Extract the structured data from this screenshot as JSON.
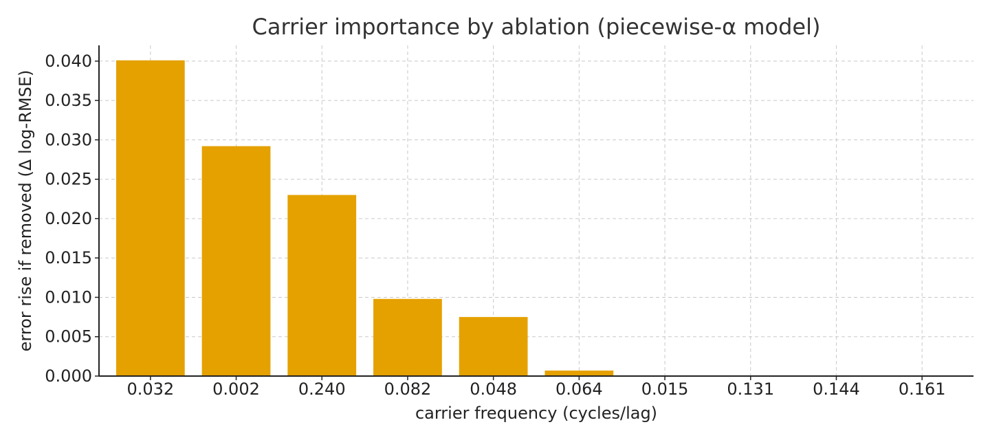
{
  "chart_data": {
    "type": "bar",
    "title": "Carrier importance by ablation (piecewise-α model)",
    "xlabel": "carrier frequency (cycles/lag)",
    "ylabel": "error rise if removed (Δ log-RMSE)",
    "categories": [
      "0.032",
      "0.002",
      "0.240",
      "0.082",
      "0.048",
      "0.064",
      "0.015",
      "0.131",
      "0.144",
      "0.161"
    ],
    "values": [
      0.0401,
      0.0292,
      0.023,
      0.0098,
      0.0075,
      0.0007,
      0.0,
      0.0,
      0.0,
      0.0
    ],
    "ylim": [
      0,
      0.042
    ],
    "yticks": [
      "0.000",
      "0.005",
      "0.010",
      "0.015",
      "0.020",
      "0.025",
      "0.030",
      "0.035",
      "0.040"
    ],
    "grid": true,
    "bar_color": "#E5A100"
  }
}
